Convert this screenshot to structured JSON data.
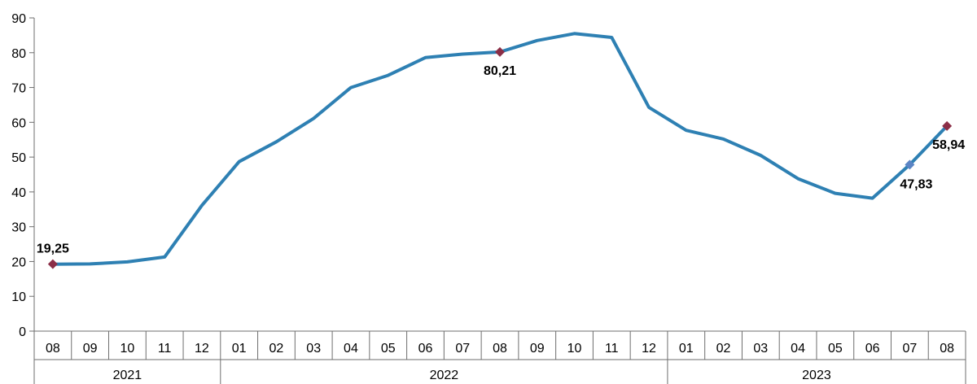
{
  "chart_data": {
    "type": "line",
    "title": "",
    "xlabel": "",
    "ylabel": "",
    "ylim": [
      0,
      90
    ],
    "yticks": [
      0,
      10,
      20,
      30,
      40,
      50,
      60,
      70,
      80,
      90
    ],
    "grid": false,
    "legend": "none",
    "categories": [
      "08",
      "09",
      "10",
      "11",
      "12",
      "01",
      "02",
      "03",
      "04",
      "05",
      "06",
      "07",
      "08",
      "09",
      "10",
      "11",
      "12",
      "01",
      "02",
      "03",
      "04",
      "05",
      "06",
      "07",
      "08"
    ],
    "years": [
      {
        "label": "2021",
        "start": 0,
        "end": 4
      },
      {
        "label": "2022",
        "start": 5,
        "end": 16
      },
      {
        "label": "2023",
        "start": 17,
        "end": 24
      }
    ],
    "series": [
      {
        "color": "#2e80b3",
        "values": [
          19.25,
          19.3,
          19.9,
          21.3,
          36.1,
          48.7,
          54.4,
          61.1,
          70.0,
          73.5,
          78.6,
          79.6,
          80.21,
          83.5,
          85.5,
          84.4,
          64.3,
          57.7,
          55.2,
          50.5,
          43.8,
          39.6,
          38.2,
          47.83,
          58.94
        ]
      }
    ],
    "markers": [
      {
        "index": 0,
        "label": "19,25",
        "color": "#8b2e47"
      },
      {
        "index": 12,
        "label": "80,21",
        "color": "#8b2e47"
      },
      {
        "index": 23,
        "label": "47,83",
        "color": "#5b84c4"
      },
      {
        "index": 24,
        "label": "58,94",
        "color": "#8b2e47"
      }
    ]
  }
}
